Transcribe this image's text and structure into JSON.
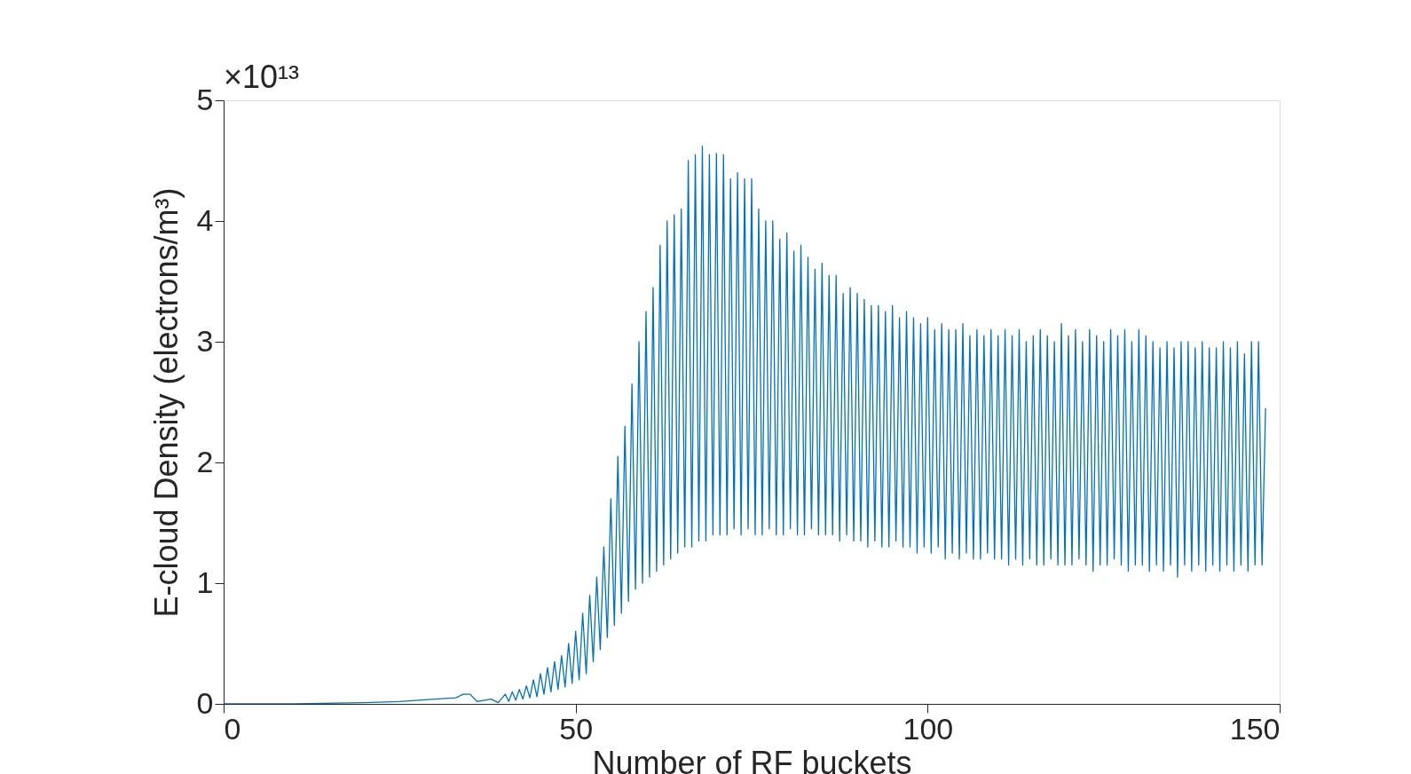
{
  "chart_data": {
    "type": "line",
    "xlabel": "Number of RF buckets",
    "ylabel": "E-cloud Density (electrons/m³)",
    "annotations": [
      "×10¹³"
    ],
    "xlim": [
      0,
      150
    ],
    "xticks": [
      0,
      50,
      100,
      150
    ],
    "ylim": [
      0,
      5
    ],
    "yticks": [
      0,
      1,
      2,
      3,
      4,
      5
    ],
    "grid": false,
    "legend": false,
    "marker": "none",
    "line_style": "solid",
    "series": [
      {
        "color": "#0072bd",
        "x": [
          0,
          10,
          20,
          25,
          30,
          33,
          34,
          35,
          36,
          38,
          39,
          40,
          40.5,
          41,
          41.5,
          42,
          42.5,
          43,
          43.5,
          44,
          44.5,
          45,
          45.5,
          46,
          46.5,
          47,
          47.5,
          48,
          48.5,
          49,
          49.5,
          50,
          50.5,
          51,
          51.5,
          52,
          52.5,
          53,
          53.5,
          54,
          54.5,
          55,
          55.5,
          56,
          56.5,
          57,
          57.5,
          58,
          58.5,
          59,
          59.5,
          60,
          60.5,
          61,
          61.5,
          62,
          62.5,
          63,
          63.5,
          64,
          64.5,
          65,
          65.5,
          66,
          66.5,
          67,
          67.5,
          68,
          68.5,
          69,
          69.5,
          70,
          70.5,
          71,
          71.5,
          72,
          72.5,
          73,
          73.5,
          74,
          74.5,
          75,
          75.5,
          76,
          76.5,
          77,
          77.5,
          78,
          78.5,
          79,
          79.5,
          80,
          80.5,
          81,
          81.5,
          82,
          82.5,
          83,
          83.5,
          84,
          84.5,
          85,
          85.5,
          86,
          86.5,
          87,
          87.5,
          88,
          88.5,
          89,
          89.5,
          90,
          90.5,
          91,
          91.5,
          92,
          92.5,
          93,
          93.5,
          94,
          94.5,
          95,
          95.5,
          96,
          96.5,
          97,
          97.5,
          98,
          98.5,
          99,
          99.5,
          100,
          100.5,
          101,
          101.5,
          102,
          102.5,
          103,
          103.5,
          104,
          104.5,
          105,
          105.5,
          106,
          106.5,
          107,
          107.5,
          108,
          108.5,
          109,
          109.5,
          110,
          110.5,
          111,
          111.5,
          112,
          112.5,
          113,
          113.5,
          114,
          114.5,
          115,
          115.5,
          116,
          116.5,
          117,
          117.5,
          118,
          118.5,
          119,
          119.5,
          120,
          120.5,
          121,
          121.5,
          122,
          122.5,
          123,
          123.5,
          124,
          124.5,
          125,
          125.5,
          126,
          126.5,
          127,
          127.5,
          128,
          128.5,
          129,
          129.5,
          130,
          130.5,
          131,
          131.5,
          132,
          132.5,
          133,
          133.5,
          134,
          134.5,
          135,
          135.5,
          136,
          136.5,
          137,
          137.5,
          138,
          138.5,
          139,
          139.5,
          140,
          140.5,
          141,
          141.5,
          142,
          142.5,
          143,
          143.5,
          144,
          144.5,
          145,
          145.5,
          146,
          146.5,
          147,
          147.5,
          148
        ],
        "values": [
          0,
          0,
          0.01,
          0.02,
          0.04,
          0.05,
          0.08,
          0.08,
          0.02,
          0.04,
          0.01,
          0.08,
          0.02,
          0.1,
          0.03,
          0.12,
          0.04,
          0.15,
          0.05,
          0.2,
          0.06,
          0.25,
          0.08,
          0.3,
          0.1,
          0.35,
          0.12,
          0.4,
          0.14,
          0.5,
          0.17,
          0.6,
          0.2,
          0.75,
          0.25,
          0.9,
          0.35,
          1.05,
          0.45,
          1.3,
          0.55,
          1.7,
          0.65,
          2.05,
          0.75,
          2.3,
          0.85,
          2.65,
          0.95,
          3.0,
          1.0,
          3.25,
          1.05,
          3.45,
          1.1,
          3.8,
          1.15,
          4.0,
          1.2,
          4.05,
          1.25,
          4.1,
          1.3,
          4.5,
          1.3,
          4.55,
          1.35,
          4.62,
          1.35,
          4.55,
          1.4,
          4.56,
          1.4,
          4.55,
          1.4,
          4.35,
          1.45,
          4.4,
          1.4,
          4.35,
          1.45,
          4.35,
          1.4,
          4.1,
          1.4,
          4.0,
          1.45,
          4.0,
          1.4,
          3.85,
          1.4,
          3.9,
          1.45,
          3.75,
          1.4,
          3.8,
          1.4,
          3.7,
          1.45,
          3.6,
          1.4,
          3.65,
          1.4,
          3.55,
          1.4,
          3.55,
          1.35,
          3.4,
          1.4,
          3.45,
          1.35,
          3.4,
          1.35,
          3.35,
          1.3,
          3.3,
          1.35,
          3.3,
          1.3,
          3.25,
          1.3,
          3.3,
          1.35,
          3.2,
          1.3,
          3.25,
          1.3,
          3.2,
          1.25,
          3.15,
          1.3,
          3.2,
          1.25,
          3.1,
          1.3,
          3.15,
          1.2,
          3.1,
          1.25,
          3.1,
          1.2,
          3.15,
          1.25,
          3.05,
          1.2,
          3.1,
          1.2,
          3.05,
          1.25,
          3.1,
          1.2,
          3.05,
          1.2,
          3.1,
          1.15,
          3.05,
          1.2,
          3.1,
          1.15,
          3.0,
          1.2,
          3.05,
          1.15,
          3.1,
          1.15,
          3.05,
          1.2,
          3.0,
          1.15,
          3.15,
          1.15,
          3.05,
          1.15,
          3.1,
          1.2,
          3.0,
          1.15,
          3.1,
          1.1,
          3.05,
          1.15,
          3.0,
          1.15,
          3.1,
          1.2,
          3.05,
          1.15,
          3.1,
          1.1,
          3.0,
          1.15,
          3.1,
          1.15,
          3.05,
          1.1,
          3.0,
          1.15,
          2.95,
          1.1,
          3.0,
          1.15,
          2.95,
          1.05,
          3.0,
          1.15,
          3.0,
          1.1,
          2.95,
          1.15,
          3.0,
          1.1,
          2.95,
          1.15,
          2.95,
          1.1,
          3.0,
          1.15,
          2.95,
          1.1,
          3.0,
          1.15,
          2.9,
          1.1,
          3.0,
          1.15,
          3.0,
          1.15,
          2.45
        ]
      }
    ]
  }
}
